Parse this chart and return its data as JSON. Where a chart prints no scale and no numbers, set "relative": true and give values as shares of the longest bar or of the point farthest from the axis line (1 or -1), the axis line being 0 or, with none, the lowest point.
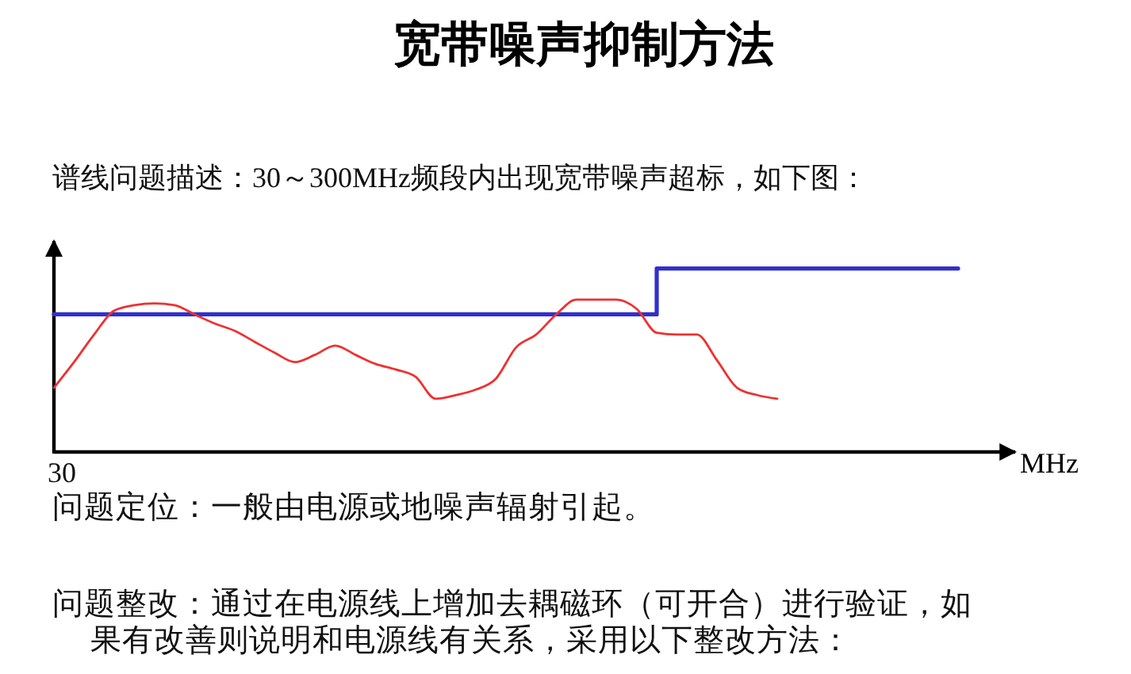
{
  "chart_data": {
    "type": "line",
    "title": "宽带噪声抑制方法",
    "subtitle": "谱线问题描述：30～300MHz频段内出现宽带噪声超标，如下图：",
    "annotations": [
      "30",
      "问题定位：一般由电源或地噪声辐射引起。",
      "问题整改：通过在电源线上增加去耦磁环（可开合）进行验证，如果有改善则说明和电源线有关系，采用以下整改方法："
    ],
    "xlabel": "MHz",
    "relative": true,
    "categories": [
      null,
      null,
      null,
      null,
      null,
      null,
      null,
      null,
      null,
      null,
      null,
      null,
      null,
      null,
      null,
      null,
      null,
      null,
      null,
      null,
      null,
      null,
      null,
      null,
      null,
      null,
      null,
      null,
      null,
      null,
      null,
      null,
      null,
      null,
      null,
      null,
      null,
      null,
      null,
      null,
      null,
      null,
      null,
      null,
      null,
      null
    ],
    "series": [
      {
        "type": "step",
        "color": "#3030cc",
        "values": [
          0.75,
          0.75,
          0.75,
          0.75,
          0.75,
          0.75,
          0.75,
          0.75,
          0.75,
          0.75,
          0.75,
          0.75,
          0.75,
          0.75,
          0.75,
          0.75,
          0.75,
          0.75,
          0.75,
          0.75,
          0.75,
          0.75,
          0.75,
          0.75,
          0.75,
          0.75,
          0.75,
          0.75,
          0.75,
          0.75,
          1,
          1,
          1,
          1,
          1,
          1,
          1,
          1,
          1,
          1,
          1,
          1,
          1,
          1,
          1,
          1
        ]
      },
      {
        "color": "#f03030",
        "values": [
          0.35,
          0.49,
          0.64,
          0.77,
          0.8,
          0.81,
          0.8,
          0.75,
          0.7,
          0.66,
          0.6,
          0.54,
          0.49,
          0.53,
          0.58,
          0.53,
          0.48,
          0.45,
          0.41,
          0.29,
          0.31,
          0.34,
          0.4,
          0.57,
          0.64,
          0.75,
          0.83,
          0.83,
          0.83,
          0.78,
          0.65,
          0.64,
          0.64,
          0.5,
          0.35,
          0.31,
          0.29,
          null,
          null,
          null,
          null,
          null,
          null,
          null,
          null,
          null
        ]
      }
    ]
  }
}
